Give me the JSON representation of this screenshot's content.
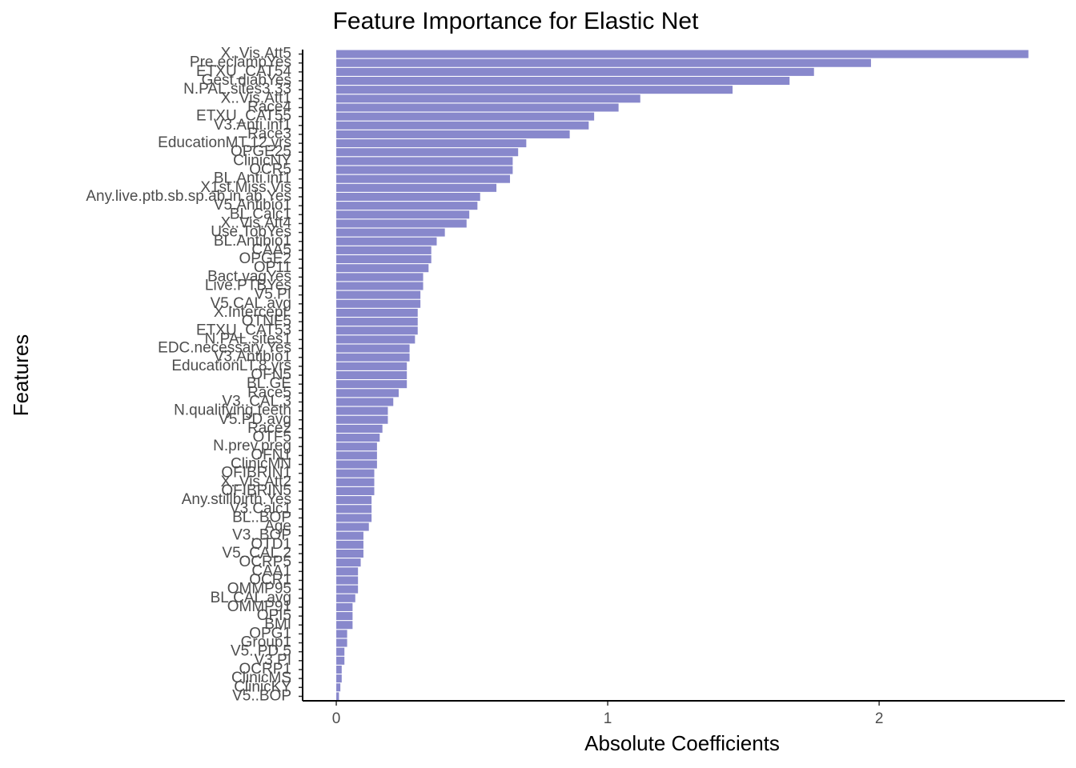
{
  "chart_data": {
    "type": "hbar",
    "title": "Feature Importance for Elastic Net",
    "x_label": "Absolute Coefficients",
    "y_label": "Features",
    "color": "#8888cc",
    "categories": [
      "X..Vis.Att5",
      "Pre.eclampYes",
      "ETXU_CAT54",
      "Gest.diabYes",
      "N.PAL.sites3.33",
      "X..Vis.Att1",
      "Race4",
      "ETXU_CAT55",
      "V3.Anti.inf1",
      "Race3",
      "EducationMT.12.yrs",
      "OPGE25",
      "ClinicNY",
      "OCR5",
      "BL.Anti.inf1",
      "X1st.Miss.Vis",
      "Any.live.ptb.sb.sp.ab.in.ab.Yes",
      "V5.Antibio1",
      "BL.Calc1",
      "X..Vis.Att4",
      "Use.TobYes",
      "BL.Antibio1",
      "CAA5",
      "OPGE2",
      "OP11",
      "Bact.vagYes",
      "Live.PTBYes",
      "V5.PI",
      "V5.CAL.avg",
      "X.Intercept.",
      "OTNF5",
      "ETXU_CAT53",
      "N.PAL.sites1",
      "EDC.necessary.Yes",
      "V3.Antibio1",
      "EducationLT.8.yrs",
      "OFN5",
      "BL.GE",
      "Race5",
      "V3..CAL.3",
      "N.qualifying.teeth",
      "V5.PD.avg",
      "Race2",
      "OTF5",
      "N.prev.preg",
      "OFN1",
      "ClinicMN",
      "OFIBRIN1",
      "X..Vis.Att2",
      "OFIBRIN5",
      "Any.stillbirth.Yes",
      "V3.Calc1",
      "BL..BOP",
      "Age",
      "V3..BOP",
      "OTD1",
      "V5..CAL.2",
      "OCRP5",
      "CAA1",
      "OCR1",
      "OMMP95",
      "BL.CAL.avg",
      "OMMP91",
      "OPI5",
      "BMI",
      "OPG1",
      "Group1",
      "V5..PD.5",
      "V3.PI",
      "OCRP1",
      "ClinicMS",
      "ClinicKY",
      "V5..BOP"
    ],
    "values": [
      2.55,
      1.97,
      1.76,
      1.67,
      1.46,
      1.12,
      1.04,
      0.95,
      0.93,
      0.86,
      0.7,
      0.67,
      0.65,
      0.65,
      0.64,
      0.59,
      0.53,
      0.52,
      0.49,
      0.48,
      0.4,
      0.37,
      0.35,
      0.35,
      0.34,
      0.32,
      0.32,
      0.31,
      0.31,
      0.3,
      0.3,
      0.3,
      0.29,
      0.27,
      0.27,
      0.26,
      0.26,
      0.26,
      0.23,
      0.21,
      0.19,
      0.19,
      0.17,
      0.16,
      0.15,
      0.15,
      0.15,
      0.14,
      0.14,
      0.14,
      0.13,
      0.13,
      0.13,
      0.12,
      0.1,
      0.1,
      0.1,
      0.09,
      0.08,
      0.08,
      0.08,
      0.07,
      0.06,
      0.06,
      0.06,
      0.04,
      0.04,
      0.03,
      0.03,
      0.02,
      0.02,
      0.015,
      0.01
    ],
    "xlim": [
      -0.124,
      2.684
    ],
    "xticks": [
      0,
      1,
      2
    ]
  }
}
